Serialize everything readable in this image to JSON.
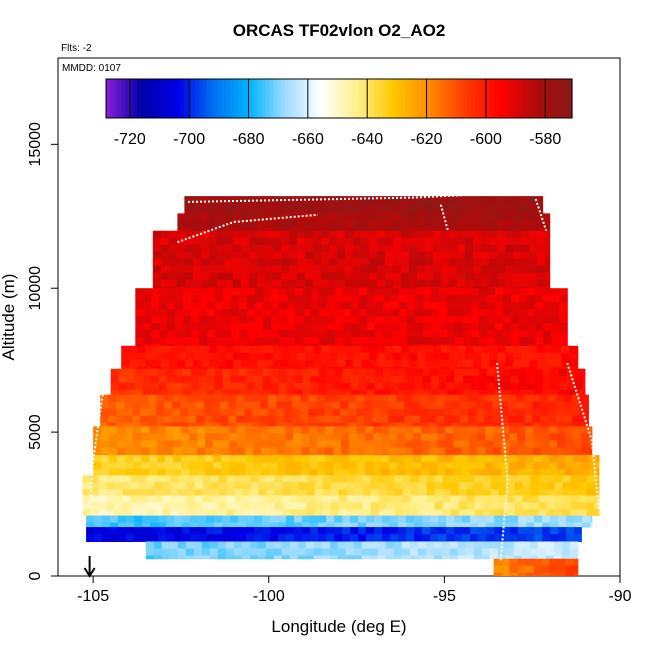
{
  "chart_data": {
    "type": "heatmap",
    "title": "ORCAS TF02vlon O2_AO2",
    "subtitle": "Flts: -2",
    "annotation": "MMDD: 0107",
    "xlabel": "Longitude (deg E)",
    "ylabel": "Altitude (m)",
    "xlim": [
      -106,
      -90
    ],
    "ylim": [
      0,
      18000
    ],
    "xticks": [
      -105,
      -100,
      -95,
      -90
    ],
    "yticks": [
      0,
      5000,
      10000,
      15000
    ],
    "grid": false,
    "colorbar": {
      "position": "top, inside plot",
      "range": [
        -728,
        -571
      ],
      "ticks": [
        -720,
        -700,
        -680,
        -660,
        -640,
        -620,
        -600,
        -580
      ],
      "colors": [
        "#8b1fd9",
        "#0000a8",
        "#0000e8",
        "#0070f0",
        "#00b4ff",
        "#a0dcff",
        "#ffffff",
        "#fff08a",
        "#ffc800",
        "#ff8c00",
        "#ff3c00",
        "#ff0000",
        "#b00a0a",
        "#8a1a1a"
      ]
    },
    "marker": {
      "type": "down-arrow",
      "x": -105.1
    },
    "layers": [
      {
        "alt_range": [
          12600,
          13200
        ],
        "lon_range": [
          -102.4,
          -92.2
        ],
        "value": -577
      },
      {
        "alt_range": [
          12000,
          12600
        ],
        "lon_range": [
          -102.6,
          -92.0
        ],
        "value": -581
      },
      {
        "alt_range": [
          10000,
          12000
        ],
        "lon_range": [
          -103.3,
          -92.0
        ],
        "value": -589
      },
      {
        "alt_range": [
          8000,
          10000
        ],
        "lon_range": [
          -103.8,
          -91.5
        ],
        "value": -592
      },
      {
        "alt_range": [
          7200,
          8000
        ],
        "lon_range": [
          -104.2,
          -91.2
        ],
        "value": -598
      },
      {
        "alt_range": [
          6300,
          7200
        ],
        "lon_range": [
          -104.5,
          -91.0
        ],
        "value": -605
      },
      {
        "alt_range": [
          5200,
          6300
        ],
        "lon_range": [
          -104.8,
          -90.9
        ],
        "value": -612
      },
      {
        "alt_range": [
          4200,
          5200
        ],
        "lon_range": [
          -105.0,
          -90.8
        ],
        "value": -620
      },
      {
        "alt_range": [
          3500,
          4200
        ],
        "lon_range": [
          -105.0,
          -90.6
        ],
        "value": -635
      },
      {
        "alt_range": [
          2800,
          3500
        ],
        "lon_range": [
          -105.3,
          -90.6
        ],
        "value": -642
      },
      {
        "alt_range": [
          2100,
          2800
        ],
        "lon_range": [
          -105.3,
          -90.6
        ],
        "value": -648
      },
      {
        "alt_range": [
          1700,
          2100
        ],
        "lon_range": [
          -105.2,
          -90.8
        ],
        "value": -676
      },
      {
        "alt_range": [
          1200,
          1700
        ],
        "lon_range": [
          -105.2,
          -91.1
        ],
        "value": -706
      },
      {
        "alt_range": [
          600,
          1200
        ],
        "lon_range": [
          -103.5,
          -91.2
        ],
        "value": -672
      },
      {
        "alt_range": [
          0,
          600
        ],
        "lon_range": [
          -93.6,
          -91.2
        ],
        "value": -618
      }
    ]
  }
}
